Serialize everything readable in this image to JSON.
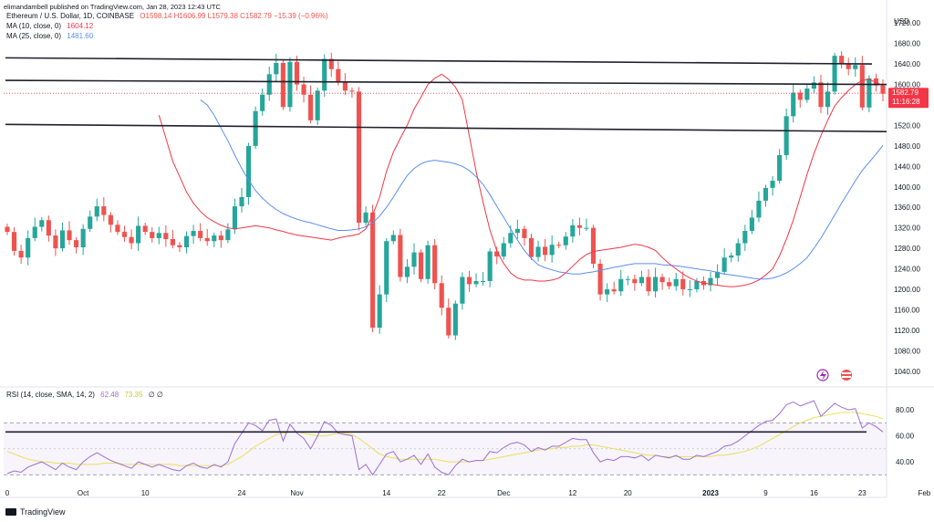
{
  "header": {
    "published": "elimandambell published on TradingView.com, Jan 28, 2023 12:43 UTC"
  },
  "legend": {
    "symbol": "Ethereum / U.S. Dollar, 1D, COINBASE",
    "ohlc": "O1598.14 H1606.99 L1579.38 C1582.79 −15.39 (−0.96%)",
    "ma10_label": "MA (10, close, 0)",
    "ma10_value": "1604.12",
    "ma25_label": "MA (25, close, 0)",
    "ma25_value": "1481.60",
    "rsi_label": "RSI (14, close, SMA, 14, 2)",
    "rsi_value": "62.48",
    "rsi_sma_value": "73.35",
    "rsi_extra": "∅ ∅"
  },
  "footer": {
    "brand": "TradingView"
  },
  "colors": {
    "up": "#26a69a",
    "down": "#ef5350",
    "ma10": "#f23645",
    "ma25": "#5b8def",
    "rsi": "#9c6fd6",
    "rsi_ma": "#e6e25a",
    "trend": "#1f1f2e",
    "price_tag": "#f23645"
  },
  "chart_data": [
    {
      "type": "candlestick",
      "currency_label": "USD",
      "ylim": [
        1020,
        1740
      ],
      "y_ticks": [
        1040,
        1080,
        1120,
        1160,
        1200,
        1240,
        1280,
        1320,
        1360,
        1400,
        1440,
        1480,
        1520,
        1560,
        1600,
        1640,
        1680,
        1720
      ],
      "x_ticks": [
        {
          "label": "0",
          "i": 0
        },
        {
          "label": "Oct",
          "i": 11
        },
        {
          "label": "10",
          "i": 20
        },
        {
          "label": "24",
          "i": 34
        },
        {
          "label": "Nov",
          "i": 42
        },
        {
          "label": "14",
          "i": 55
        },
        {
          "label": "22",
          "i": 63
        },
        {
          "label": "Dec",
          "i": 72
        },
        {
          "label": "12",
          "i": 82
        },
        {
          "label": "20",
          "i": 90
        },
        {
          "label": "2023",
          "i": 102
        },
        {
          "label": "9",
          "i": 110
        },
        {
          "label": "16",
          "i": 117
        },
        {
          "label": "23",
          "i": 124
        },
        {
          "label": "Feb",
          "i": 133
        }
      ],
      "last_price": "1582.79",
      "countdown": "11:16:28",
      "close": [
        1312,
        1275,
        1262,
        1300,
        1322,
        1335,
        1305,
        1280,
        1315,
        1296,
        1282,
        1318,
        1342,
        1362,
        1345,
        1326,
        1312,
        1302,
        1290,
        1324,
        1312,
        1300,
        1310,
        1298,
        1286,
        1282,
        1304,
        1314,
        1300,
        1294,
        1305,
        1296,
        1317,
        1362,
        1380,
        1480,
        1548,
        1580,
        1620,
        1642,
        1556,
        1644,
        1600,
        1580,
        1530,
        1588,
        1650,
        1630,
        1604,
        1588,
        1586,
        1330,
        1350,
        1125,
        1190,
        1294,
        1306,
        1224,
        1244,
        1272,
        1220,
        1286,
        1212,
        1164,
        1110,
        1172,
        1224,
        1210,
        1216,
        1216,
        1274,
        1264,
        1290,
        1310,
        1318,
        1300,
        1263,
        1283,
        1267,
        1287,
        1286,
        1303,
        1325,
        1320,
        1320,
        1250,
        1190,
        1200,
        1196,
        1220,
        1220,
        1212,
        1224,
        1196,
        1224,
        1214,
        1206,
        1220,
        1200,
        1200,
        1216,
        1208,
        1222,
        1234,
        1262,
        1266,
        1290,
        1314,
        1340,
        1373,
        1398,
        1412,
        1462,
        1538,
        1584,
        1570,
        1592,
        1604,
        1556,
        1586,
        1656,
        1640,
        1630,
        1638,
        1555,
        1612,
        1598,
        1582
      ],
      "ma10": [
        1540,
        1495,
        1450,
        1420,
        1390,
        1368,
        1352,
        1340,
        1332,
        1325,
        1320,
        1318,
        1320,
        1322,
        1324,
        1322,
        1320,
        1316,
        1313,
        1309,
        1306,
        1304,
        1302,
        1300,
        1298,
        1296,
        1300,
        1303,
        1305,
        1308,
        1318,
        1345,
        1380,
        1430,
        1468,
        1495,
        1520,
        1552,
        1575,
        1600,
        1612,
        1620,
        1610,
        1595,
        1570,
        1500,
        1430,
        1370,
        1316,
        1275,
        1250,
        1232,
        1222,
        1218,
        1218,
        1216,
        1216,
        1218,
        1222,
        1232,
        1245,
        1258,
        1268,
        1274,
        1276,
        1278,
        1280,
        1282,
        1285,
        1288,
        1286,
        1282,
        1276,
        1262,
        1250,
        1240,
        1230,
        1222,
        1216,
        1212,
        1210,
        1208,
        1206,
        1205,
        1206,
        1208,
        1212,
        1218,
        1228,
        1240,
        1265,
        1298,
        1335,
        1380,
        1425,
        1465,
        1500,
        1530,
        1558,
        1574,
        1588,
        1600,
        1608,
        1610,
        1604,
        1598
      ],
      "ma25": [
        1570,
        1560,
        1540,
        1515,
        1490,
        1462,
        1436,
        1413,
        1393,
        1378,
        1366,
        1356,
        1348,
        1342,
        1337,
        1333,
        1330,
        1326,
        1322,
        1318,
        1315,
        1315,
        1316,
        1318,
        1322,
        1330,
        1343,
        1360,
        1380,
        1402,
        1422,
        1436,
        1445,
        1450,
        1452,
        1450,
        1448,
        1445,
        1440,
        1432,
        1420,
        1405,
        1385,
        1362,
        1340,
        1318,
        1296,
        1276,
        1260,
        1248,
        1242,
        1238,
        1234,
        1232,
        1230,
        1230,
        1232,
        1234,
        1237,
        1240,
        1243,
        1245,
        1248,
        1250,
        1250,
        1250,
        1250,
        1248,
        1247,
        1246,
        1244,
        1242,
        1240,
        1238,
        1236,
        1233,
        1230,
        1228,
        1226,
        1224,
        1222,
        1220,
        1220,
        1222,
        1226,
        1232,
        1240,
        1250,
        1262,
        1280,
        1300,
        1322,
        1345,
        1368,
        1390,
        1412,
        1432,
        1448,
        1464,
        1481
      ]
    },
    {
      "type": "line",
      "name": "RSI",
      "ylim": [
        26,
        92
      ],
      "y_ticks": [
        40,
        60,
        80
      ],
      "band": [
        30,
        70
      ],
      "rsi": [
        31,
        33,
        32,
        36,
        38,
        40,
        37,
        34,
        39,
        36,
        34,
        40,
        44,
        47,
        44,
        41,
        39,
        37,
        35,
        40,
        38,
        36,
        38,
        36,
        34,
        33,
        37,
        39,
        36,
        35,
        38,
        36,
        40,
        54,
        62,
        70,
        68,
        64,
        72,
        73,
        56,
        69,
        62,
        58,
        50,
        60,
        71,
        68,
        62,
        61,
        60,
        34,
        38,
        30,
        38,
        46,
        48,
        40,
        42,
        45,
        38,
        46,
        36,
        32,
        30,
        37,
        42,
        40,
        41,
        41,
        48,
        47,
        51,
        54,
        55,
        53,
        48,
        51,
        49,
        52,
        52,
        55,
        58,
        57,
        57,
        47,
        40,
        42,
        41,
        44,
        44,
        43,
        45,
        41,
        45,
        44,
        43,
        45,
        42,
        42,
        45,
        44,
        46,
        48,
        52,
        53,
        56,
        60,
        64,
        68,
        71,
        72,
        77,
        84,
        86,
        83,
        85,
        87,
        75,
        80,
        85,
        82,
        80,
        81,
        66,
        70,
        67,
        63
      ],
      "rsi_ma": [
        48,
        46,
        44,
        42,
        41,
        40,
        40,
        39,
        39,
        39,
        38,
        38,
        38,
        38,
        39,
        39,
        39,
        38,
        38,
        38,
        38,
        38,
        38,
        38,
        38,
        37,
        37,
        37,
        37,
        37,
        37,
        37,
        38,
        41,
        44,
        48,
        52,
        55,
        58,
        61,
        62,
        63,
        63,
        62,
        61,
        60,
        60,
        61,
        62,
        62,
        61,
        58,
        54,
        50,
        46,
        44,
        43,
        42,
        42,
        42,
        42,
        42,
        42,
        41,
        40,
        40,
        40,
        40,
        41,
        41,
        42,
        43,
        44,
        45,
        46,
        47,
        48,
        49,
        50,
        50,
        51,
        51,
        52,
        52,
        53,
        53,
        52,
        51,
        50,
        49,
        48,
        47,
        46,
        45,
        45,
        44,
        44,
        44,
        44,
        44,
        44,
        44,
        44,
        45,
        45,
        46,
        47,
        48,
        50,
        52,
        55,
        58,
        61,
        64,
        67,
        70,
        72,
        74,
        75,
        76,
        77,
        78,
        78,
        78,
        77,
        76,
        75,
        73
      ]
    }
  ]
}
